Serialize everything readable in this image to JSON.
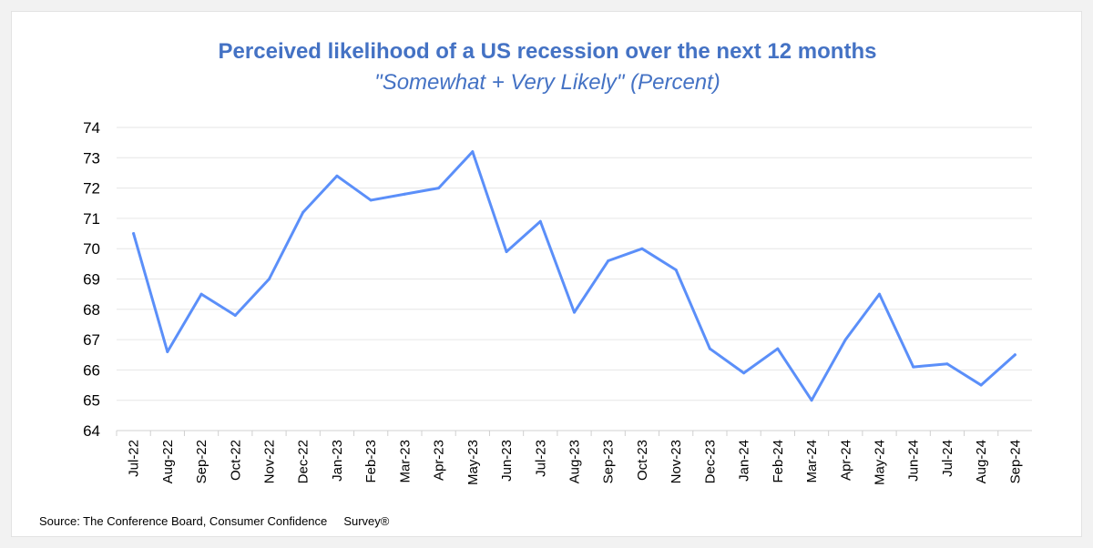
{
  "chart_data": {
    "type": "line",
    "title": "Perceived likelihood of a US recession over the next 12 months",
    "subtitle": "\"Somewhat + Very Likely\" (Percent)",
    "categories": [
      "Jul-22",
      "Aug-22",
      "Sep-22",
      "Oct-22",
      "Nov-22",
      "Dec-22",
      "Jan-23",
      "Feb-23",
      "Mar-23",
      "Apr-23",
      "May-23",
      "Jun-23",
      "Jul-23",
      "Aug-23",
      "Sep-23",
      "Oct-23",
      "Nov-23",
      "Dec-23",
      "Jan-24",
      "Feb-24",
      "Mar-24",
      "Apr-24",
      "May-24",
      "Jun-24",
      "Jul-24",
      "Aug-24",
      "Sep-24"
    ],
    "values": [
      70.5,
      66.6,
      68.5,
      67.8,
      69.0,
      71.2,
      72.4,
      71.6,
      71.8,
      72.0,
      73.2,
      69.9,
      70.9,
      67.9,
      69.6,
      70.0,
      69.3,
      66.7,
      65.9,
      66.7,
      65.0,
      67.0,
      68.5,
      66.1,
      66.2,
      65.5,
      66.5
    ],
    "ylim": [
      64,
      74
    ],
    "yticks": [
      "64",
      "65",
      "66",
      "67",
      "68",
      "69",
      "70",
      "71",
      "72",
      "73",
      "74"
    ],
    "grid": true,
    "line_color": "#5b8ff9",
    "title_color": "#4472c4"
  },
  "source": "Source: The Conference Board, Consumer Confidence     Survey®"
}
